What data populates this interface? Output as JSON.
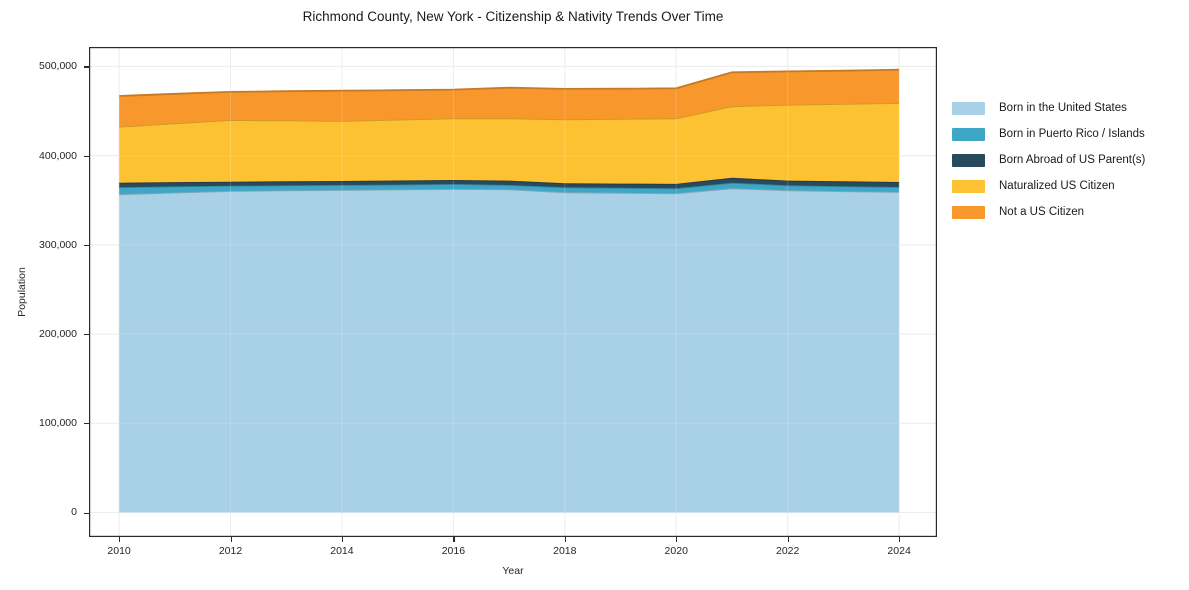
{
  "title": "Richmond County, New York - Citizenship & Nativity Trends Over Time",
  "axes": {
    "xlabel": "Year",
    "ylabel": "Population",
    "x_tick_values": [
      2010,
      2012,
      2014,
      2016,
      2018,
      2020,
      2022,
      2024
    ],
    "x_tick_labels": [
      "2010",
      "2012",
      "2014",
      "2016",
      "2018",
      "2020",
      "2022",
      "2024"
    ],
    "y_tick_values": [
      0,
      100000,
      200000,
      300000,
      400000,
      500000
    ],
    "y_tick_labels": [
      "0",
      "100,000",
      "200,000",
      "300,000",
      "400,000",
      "500,000"
    ]
  },
  "chart_data": {
    "type": "area",
    "stacked": true,
    "title": "Richmond County, New York - Citizenship & Nativity Trends Over Time",
    "xlabel": "Year",
    "ylabel": "Population",
    "grid": true,
    "legend_position": "right",
    "xlim": [
      2009.46,
      2024.68
    ],
    "ylim": [
      -27500,
      521800
    ],
    "x": [
      2010,
      2011,
      2012,
      2013,
      2014,
      2015,
      2016,
      2017,
      2018,
      2019,
      2020,
      2021,
      2022,
      2023,
      2024
    ],
    "series": [
      {
        "name": "Born in the United States",
        "color": "#a8d1e7",
        "values": [
          356700,
          358600,
          360400,
          361000,
          361500,
          362000,
          362600,
          362200,
          358900,
          358400,
          357800,
          363400,
          361200,
          360200,
          359300
        ]
      },
      {
        "name": "Born in Puerto Rico / Islands",
        "color": "#3fa7c6",
        "values": [
          7900,
          6900,
          5900,
          5700,
          5600,
          5600,
          5600,
          4900,
          5600,
          5600,
          5600,
          6300,
          5600,
          5600,
          5600
        ]
      },
      {
        "name": "Born Abroad of US Parent(s)",
        "color": "#29495c",
        "values": [
          5100,
          4800,
          4500,
          4500,
          4500,
          4500,
          4500,
          4900,
          4500,
          4700,
          4900,
          5600,
          5200,
          5400,
          5600
        ]
      },
      {
        "name": "Naturalized US Citizen",
        "color": "#fdc232",
        "values": [
          62800,
          66000,
          69200,
          68300,
          67300,
          68300,
          69200,
          69900,
          71700,
          72600,
          73600,
          80000,
          85100,
          86800,
          88500
        ]
      },
      {
        "name": "Not a US Citizen",
        "color": "#f8982c",
        "values": [
          34400,
          33000,
          31500,
          32700,
          33900,
          33000,
          32100,
          34300,
          34100,
          33800,
          33600,
          38100,
          37400,
          37200,
          37400
        ]
      }
    ]
  },
  "style_colors": {
    "grid": "#e9e9e9",
    "axis_border": "#2b2b2b",
    "tick": "#2b2b2b"
  }
}
